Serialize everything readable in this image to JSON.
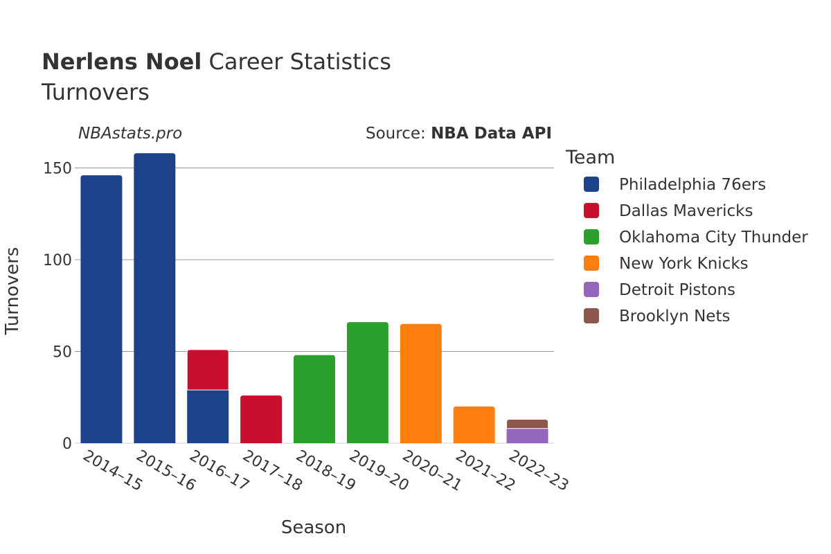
{
  "header": {
    "title_bold": "Nerlens Noel",
    "title_rest": "Career Statistics",
    "subtitle": "Turnovers",
    "watermark": "NBAstats.pro",
    "source_prefix": "Source: ",
    "source_bold": "NBA Data API"
  },
  "legend": {
    "title": "Team",
    "items": [
      {
        "name": "Philadelphia 76ers",
        "color": "#1d428a"
      },
      {
        "name": "Dallas Mavericks",
        "color": "#c8102e"
      },
      {
        "name": "Oklahoma City Thunder",
        "color": "#2ca02c"
      },
      {
        "name": "New York Knicks",
        "color": "#ff7f0e"
      },
      {
        "name": "Detroit Pistons",
        "color": "#9467bd"
      },
      {
        "name": "Brooklyn Nets",
        "color": "#8c564b"
      }
    ]
  },
  "chart_data": {
    "type": "bar",
    "stacked": true,
    "xlabel": "Season",
    "ylabel": "Turnovers",
    "ylim": [
      0,
      160
    ],
    "yticks": [
      0,
      50,
      100,
      150
    ],
    "grid": true,
    "legend_position": "right",
    "categories": [
      "2014–15",
      "2015–16",
      "2016–17",
      "2017–18",
      "2018–19",
      "2019–20",
      "2020–21",
      "2021–22",
      "2022–23"
    ],
    "series": [
      {
        "name": "Philadelphia 76ers",
        "color": "#1d428a",
        "values": [
          146,
          158,
          29,
          0,
          0,
          0,
          0,
          0,
          0
        ]
      },
      {
        "name": "Dallas Mavericks",
        "color": "#c8102e",
        "values": [
          0,
          0,
          22,
          26,
          0,
          0,
          0,
          0,
          0
        ]
      },
      {
        "name": "Oklahoma City Thunder",
        "color": "#2ca02c",
        "values": [
          0,
          0,
          0,
          0,
          48,
          66,
          0,
          0,
          0
        ]
      },
      {
        "name": "New York Knicks",
        "color": "#ff7f0e",
        "values": [
          0,
          0,
          0,
          0,
          0,
          0,
          65,
          20,
          0
        ]
      },
      {
        "name": "Detroit Pistons",
        "color": "#9467bd",
        "values": [
          0,
          0,
          0,
          0,
          0,
          0,
          0,
          0,
          8
        ]
      },
      {
        "name": "Brooklyn Nets",
        "color": "#8c564b",
        "values": [
          0,
          0,
          0,
          0,
          0,
          0,
          0,
          0,
          5
        ]
      }
    ]
  }
}
